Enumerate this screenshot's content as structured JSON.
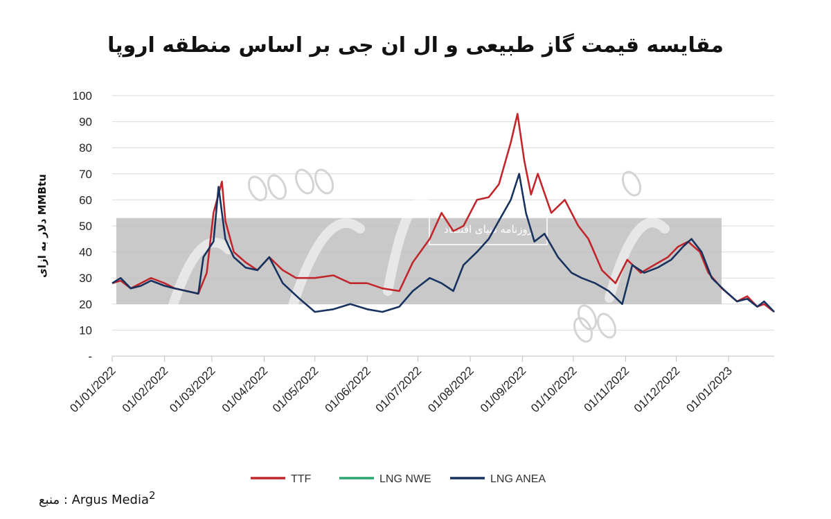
{
  "title": "مقایسه قیمت گاز طبیعی و ال ان جی  بر اساس منطقه اروپا",
  "source": {
    "label": "منبع",
    "sep": " : ",
    "text": "Argus Media",
    "sup": "2"
  },
  "watermark": {
    "text": "روزنامه دنیای اقتصاد"
  },
  "colors": {
    "ttf": "#c0262b",
    "nwe": "#2aa66f",
    "anea": "#17325e",
    "grid": "#d9d9d9",
    "band": "#bfbfbf"
  },
  "chart_data": {
    "type": "line",
    "ylabel": "دلار به ازای MMBtu",
    "ylim": [
      0,
      100
    ],
    "yticks": [
      "-",
      "10",
      "20",
      "30",
      "40",
      "50",
      "60",
      "70",
      "80",
      "90",
      "100"
    ],
    "xlim": [
      "2022-01-01",
      "2023-01-28"
    ],
    "xticks": [
      "01/01/2022",
      "01/02/2022",
      "01/03/2022",
      "01/04/2022",
      "01/05/2022",
      "01/06/2022",
      "01/07/2022",
      "01/08/2022",
      "01/09/2022",
      "01/10/2022",
      "01/11/2022",
      "01/12/2022",
      "01/01/2023"
    ],
    "grid": true,
    "legend": "bottom",
    "series": [
      {
        "name": "TTF",
        "color": "#c0262b",
        "points": [
          [
            "2022-01-01",
            28
          ],
          [
            "2022-01-06",
            29
          ],
          [
            "2022-01-12",
            26
          ],
          [
            "2022-01-18",
            28
          ],
          [
            "2022-01-24",
            30
          ],
          [
            "2022-02-01",
            28
          ],
          [
            "2022-02-07",
            26
          ],
          [
            "2022-02-14",
            25
          ],
          [
            "2022-02-21",
            24
          ],
          [
            "2022-02-26",
            32
          ],
          [
            "2022-03-02",
            55
          ],
          [
            "2022-03-07",
            67
          ],
          [
            "2022-03-09",
            52
          ],
          [
            "2022-03-14",
            40
          ],
          [
            "2022-03-21",
            36
          ],
          [
            "2022-03-28",
            33
          ],
          [
            "2022-04-04",
            38
          ],
          [
            "2022-04-12",
            33
          ],
          [
            "2022-04-20",
            30
          ],
          [
            "2022-05-01",
            30
          ],
          [
            "2022-05-12",
            31
          ],
          [
            "2022-05-22",
            28
          ],
          [
            "2022-06-01",
            28
          ],
          [
            "2022-06-10",
            26
          ],
          [
            "2022-06-20",
            25
          ],
          [
            "2022-06-28",
            36
          ],
          [
            "2022-07-08",
            45
          ],
          [
            "2022-07-15",
            55
          ],
          [
            "2022-07-22",
            48
          ],
          [
            "2022-07-28",
            50
          ],
          [
            "2022-08-05",
            60
          ],
          [
            "2022-08-12",
            61
          ],
          [
            "2022-08-18",
            66
          ],
          [
            "2022-08-25",
            82
          ],
          [
            "2022-08-29",
            93
          ],
          [
            "2022-09-02",
            75
          ],
          [
            "2022-09-06",
            62
          ],
          [
            "2022-09-10",
            70
          ],
          [
            "2022-09-18",
            55
          ],
          [
            "2022-09-26",
            60
          ],
          [
            "2022-10-04",
            50
          ],
          [
            "2022-10-10",
            45
          ],
          [
            "2022-10-18",
            33
          ],
          [
            "2022-10-26",
            28
          ],
          [
            "2022-11-02",
            37
          ],
          [
            "2022-11-10",
            32
          ],
          [
            "2022-11-18",
            35
          ],
          [
            "2022-11-26",
            38
          ],
          [
            "2022-12-02",
            42
          ],
          [
            "2022-12-08",
            44
          ],
          [
            "2022-12-15",
            40
          ],
          [
            "2022-12-20",
            32
          ],
          [
            "2022-12-28",
            26
          ],
          [
            "2023-01-06",
            21
          ],
          [
            "2023-01-12",
            23
          ],
          [
            "2023-01-18",
            19
          ],
          [
            "2023-01-22",
            20
          ],
          [
            "2023-01-28",
            17
          ]
        ]
      },
      {
        "name": "LNG NWE",
        "color": "#2aa66f",
        "points": []
      },
      {
        "name": "LNG ANEA",
        "color": "#17325e",
        "points": [
          [
            "2022-01-01",
            28
          ],
          [
            "2022-01-06",
            30
          ],
          [
            "2022-01-12",
            26
          ],
          [
            "2022-01-18",
            27
          ],
          [
            "2022-01-24",
            29
          ],
          [
            "2022-02-01",
            27
          ],
          [
            "2022-02-07",
            26
          ],
          [
            "2022-02-14",
            25
          ],
          [
            "2022-02-21",
            24
          ],
          [
            "2022-02-24",
            38
          ],
          [
            "2022-03-02",
            44
          ],
          [
            "2022-03-05",
            65
          ],
          [
            "2022-03-09",
            45
          ],
          [
            "2022-03-14",
            38
          ],
          [
            "2022-03-21",
            34
          ],
          [
            "2022-03-28",
            33
          ],
          [
            "2022-04-04",
            38
          ],
          [
            "2022-04-12",
            28
          ],
          [
            "2022-04-22",
            22
          ],
          [
            "2022-05-01",
            17
          ],
          [
            "2022-05-12",
            18
          ],
          [
            "2022-05-22",
            20
          ],
          [
            "2022-06-01",
            18
          ],
          [
            "2022-06-10",
            17
          ],
          [
            "2022-06-20",
            19
          ],
          [
            "2022-06-28",
            25
          ],
          [
            "2022-07-08",
            30
          ],
          [
            "2022-07-15",
            28
          ],
          [
            "2022-07-22",
            25
          ],
          [
            "2022-07-28",
            35
          ],
          [
            "2022-08-05",
            40
          ],
          [
            "2022-08-12",
            45
          ],
          [
            "2022-08-18",
            52
          ],
          [
            "2022-08-25",
            60
          ],
          [
            "2022-08-30",
            70
          ],
          [
            "2022-09-03",
            55
          ],
          [
            "2022-09-08",
            44
          ],
          [
            "2022-09-14",
            47
          ],
          [
            "2022-09-22",
            38
          ],
          [
            "2022-09-30",
            32
          ],
          [
            "2022-10-06",
            30
          ],
          [
            "2022-10-14",
            28
          ],
          [
            "2022-10-22",
            25
          ],
          [
            "2022-10-30",
            20
          ],
          [
            "2022-11-05",
            35
          ],
          [
            "2022-11-12",
            32
          ],
          [
            "2022-11-20",
            34
          ],
          [
            "2022-11-28",
            37
          ],
          [
            "2022-12-05",
            42
          ],
          [
            "2022-12-10",
            45
          ],
          [
            "2022-12-16",
            40
          ],
          [
            "2022-12-22",
            30
          ],
          [
            "2022-12-30",
            25
          ],
          [
            "2023-01-06",
            21
          ],
          [
            "2023-01-12",
            22
          ],
          [
            "2023-01-18",
            19
          ],
          [
            "2023-01-22",
            21
          ],
          [
            "2023-01-28",
            17
          ]
        ]
      }
    ]
  }
}
